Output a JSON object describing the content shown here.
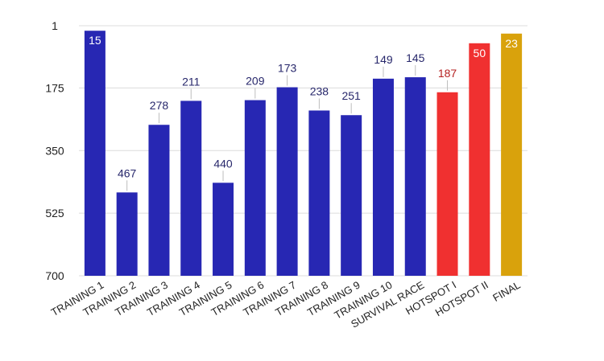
{
  "chart_data": {
    "type": "bar",
    "title": "",
    "xlabel": "",
    "ylabel": "",
    "y_reversed": true,
    "ylim": [
      1,
      700
    ],
    "yticks": [
      1,
      175,
      350,
      525,
      700
    ],
    "grid": true,
    "legend": "none",
    "categories": [
      "TRAINING 1",
      "TRAINING 2",
      "TRAINING 3",
      "TRAINING 4",
      "TRAINING 5",
      "TRAINING 6",
      "TRAINING 7",
      "TRAINING 8",
      "TRAINING 9",
      "TRAINING 10",
      "SURVIVAL RACE",
      "HOTSPOT I",
      "HOTSPOT II",
      "FINAL"
    ],
    "values": [
      15,
      467,
      278,
      211,
      440,
      209,
      173,
      238,
      251,
      149,
      145,
      187,
      50,
      23
    ],
    "labels_inside": [
      true,
      false,
      false,
      false,
      false,
      false,
      false,
      false,
      false,
      false,
      false,
      false,
      true,
      true
    ],
    "colors": [
      "#2727b3",
      "#2727b3",
      "#2727b3",
      "#2727b3",
      "#2727b3",
      "#2727b3",
      "#2727b3",
      "#2727b3",
      "#2727b3",
      "#2727b3",
      "#2727b3",
      "#f03030",
      "#f03030",
      "#d9a20c"
    ],
    "label_colors": [
      "#ffffff",
      "#27276b",
      "#27276b",
      "#27276b",
      "#27276b",
      "#27276b",
      "#27276b",
      "#27276b",
      "#27276b",
      "#27276b",
      "#27276b",
      "#b52222",
      "#ffffff",
      "#ffffff"
    ]
  }
}
